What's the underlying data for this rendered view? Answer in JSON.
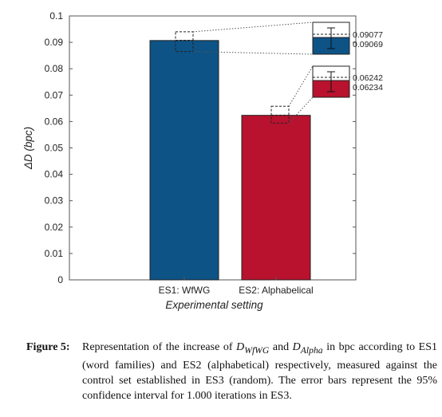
{
  "chart_data": {
    "type": "bar",
    "categories": [
      "ES1: WfWG",
      "ES2: Alphabelical"
    ],
    "values": [
      0.09069,
      0.06234
    ],
    "error_bar_upper": [
      0.09077,
      0.06242
    ],
    "colors": [
      "#0d5386",
      "#b8122e"
    ],
    "xlabel": "Experimental setting",
    "ylabel": "ΔD (bpc)",
    "ylim": [
      0,
      0.1
    ],
    "yticks": [
      "0",
      "0.01",
      "0.02",
      "0.03",
      "0.04",
      "0.05",
      "0.06",
      "0.07",
      "0.08",
      "0.09",
      "0.1"
    ],
    "grid": false,
    "inset_labels": [
      [
        "0.09077",
        "0.09069"
      ],
      [
        "0.06242",
        "0.06234"
      ]
    ]
  },
  "caption": {
    "label": "Figure 5:",
    "text_a": "Representation of the increase of ",
    "sym1": "D",
    "sub1": "WfWG",
    "text_b": " and ",
    "sym2": "D",
    "sub2": "Alpha",
    "text_c": " in bpc according to ES1 (word families) and ES2 (alphabetical) respectively, measured against the control set established in ES3 (random). The error bars represent the 95% confidence interval for 1.000 iterations in ES3."
  }
}
